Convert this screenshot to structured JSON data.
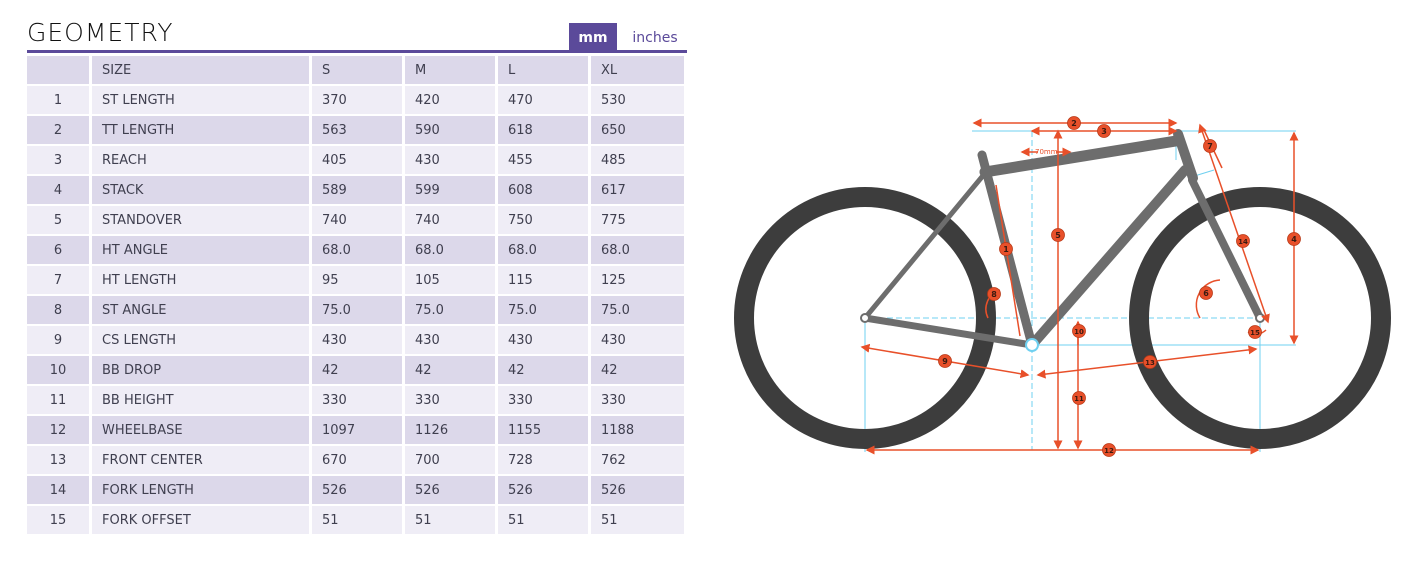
{
  "title": "GEOMETRY",
  "units": {
    "mm_label": "mm",
    "inches_label": "inches",
    "selected": "mm"
  },
  "colors": {
    "accent": "#5b4a9a",
    "dimension": "#e8502a",
    "guide": "#6fd0f0",
    "frame": "#6d6d6d",
    "tire": "#3d3d3d"
  },
  "table": {
    "headers": [
      "",
      "SIZE",
      "S",
      "M",
      "L",
      "XL"
    ],
    "rows": [
      [
        "1",
        "ST LENGTH",
        "370",
        "420",
        "470",
        "530"
      ],
      [
        "2",
        "TT LENGTH",
        "563",
        "590",
        "618",
        "650"
      ],
      [
        "3",
        "REACH",
        "405",
        "430",
        "455",
        "485"
      ],
      [
        "4",
        "STACK",
        "589",
        "599",
        "608",
        "617"
      ],
      [
        "5",
        "STANDOVER",
        "740",
        "740",
        "750",
        "775"
      ],
      [
        "6",
        "HT ANGLE",
        "68.0",
        "68.0",
        "68.0",
        "68.0"
      ],
      [
        "7",
        "HT LENGTH",
        "95",
        "105",
        "115",
        "125"
      ],
      [
        "8",
        "ST ANGLE",
        "75.0",
        "75.0",
        "75.0",
        "75.0"
      ],
      [
        "9",
        "CS LENGTH",
        "430",
        "430",
        "430",
        "430"
      ],
      [
        "10",
        "BB DROP",
        "42",
        "42",
        "42",
        "42"
      ],
      [
        "11",
        "BB HEIGHT",
        "330",
        "330",
        "330",
        "330"
      ],
      [
        "12",
        "WHEELBASE",
        "1097",
        "1126",
        "1155",
        "1188"
      ],
      [
        "13",
        "FRONT CENTER",
        "670",
        "700",
        "728",
        "762"
      ],
      [
        "14",
        "FORK LENGTH",
        "526",
        "526",
        "526",
        "526"
      ],
      [
        "15",
        "FORK OFFSET",
        "51",
        "51",
        "51",
        "51"
      ]
    ]
  },
  "diagram": {
    "annotation_70mm": "70mm",
    "markers": [
      "1",
      "2",
      "3",
      "4",
      "5",
      "6",
      "7",
      "8",
      "9",
      "10",
      "11",
      "12",
      "13",
      "14",
      "15"
    ]
  }
}
